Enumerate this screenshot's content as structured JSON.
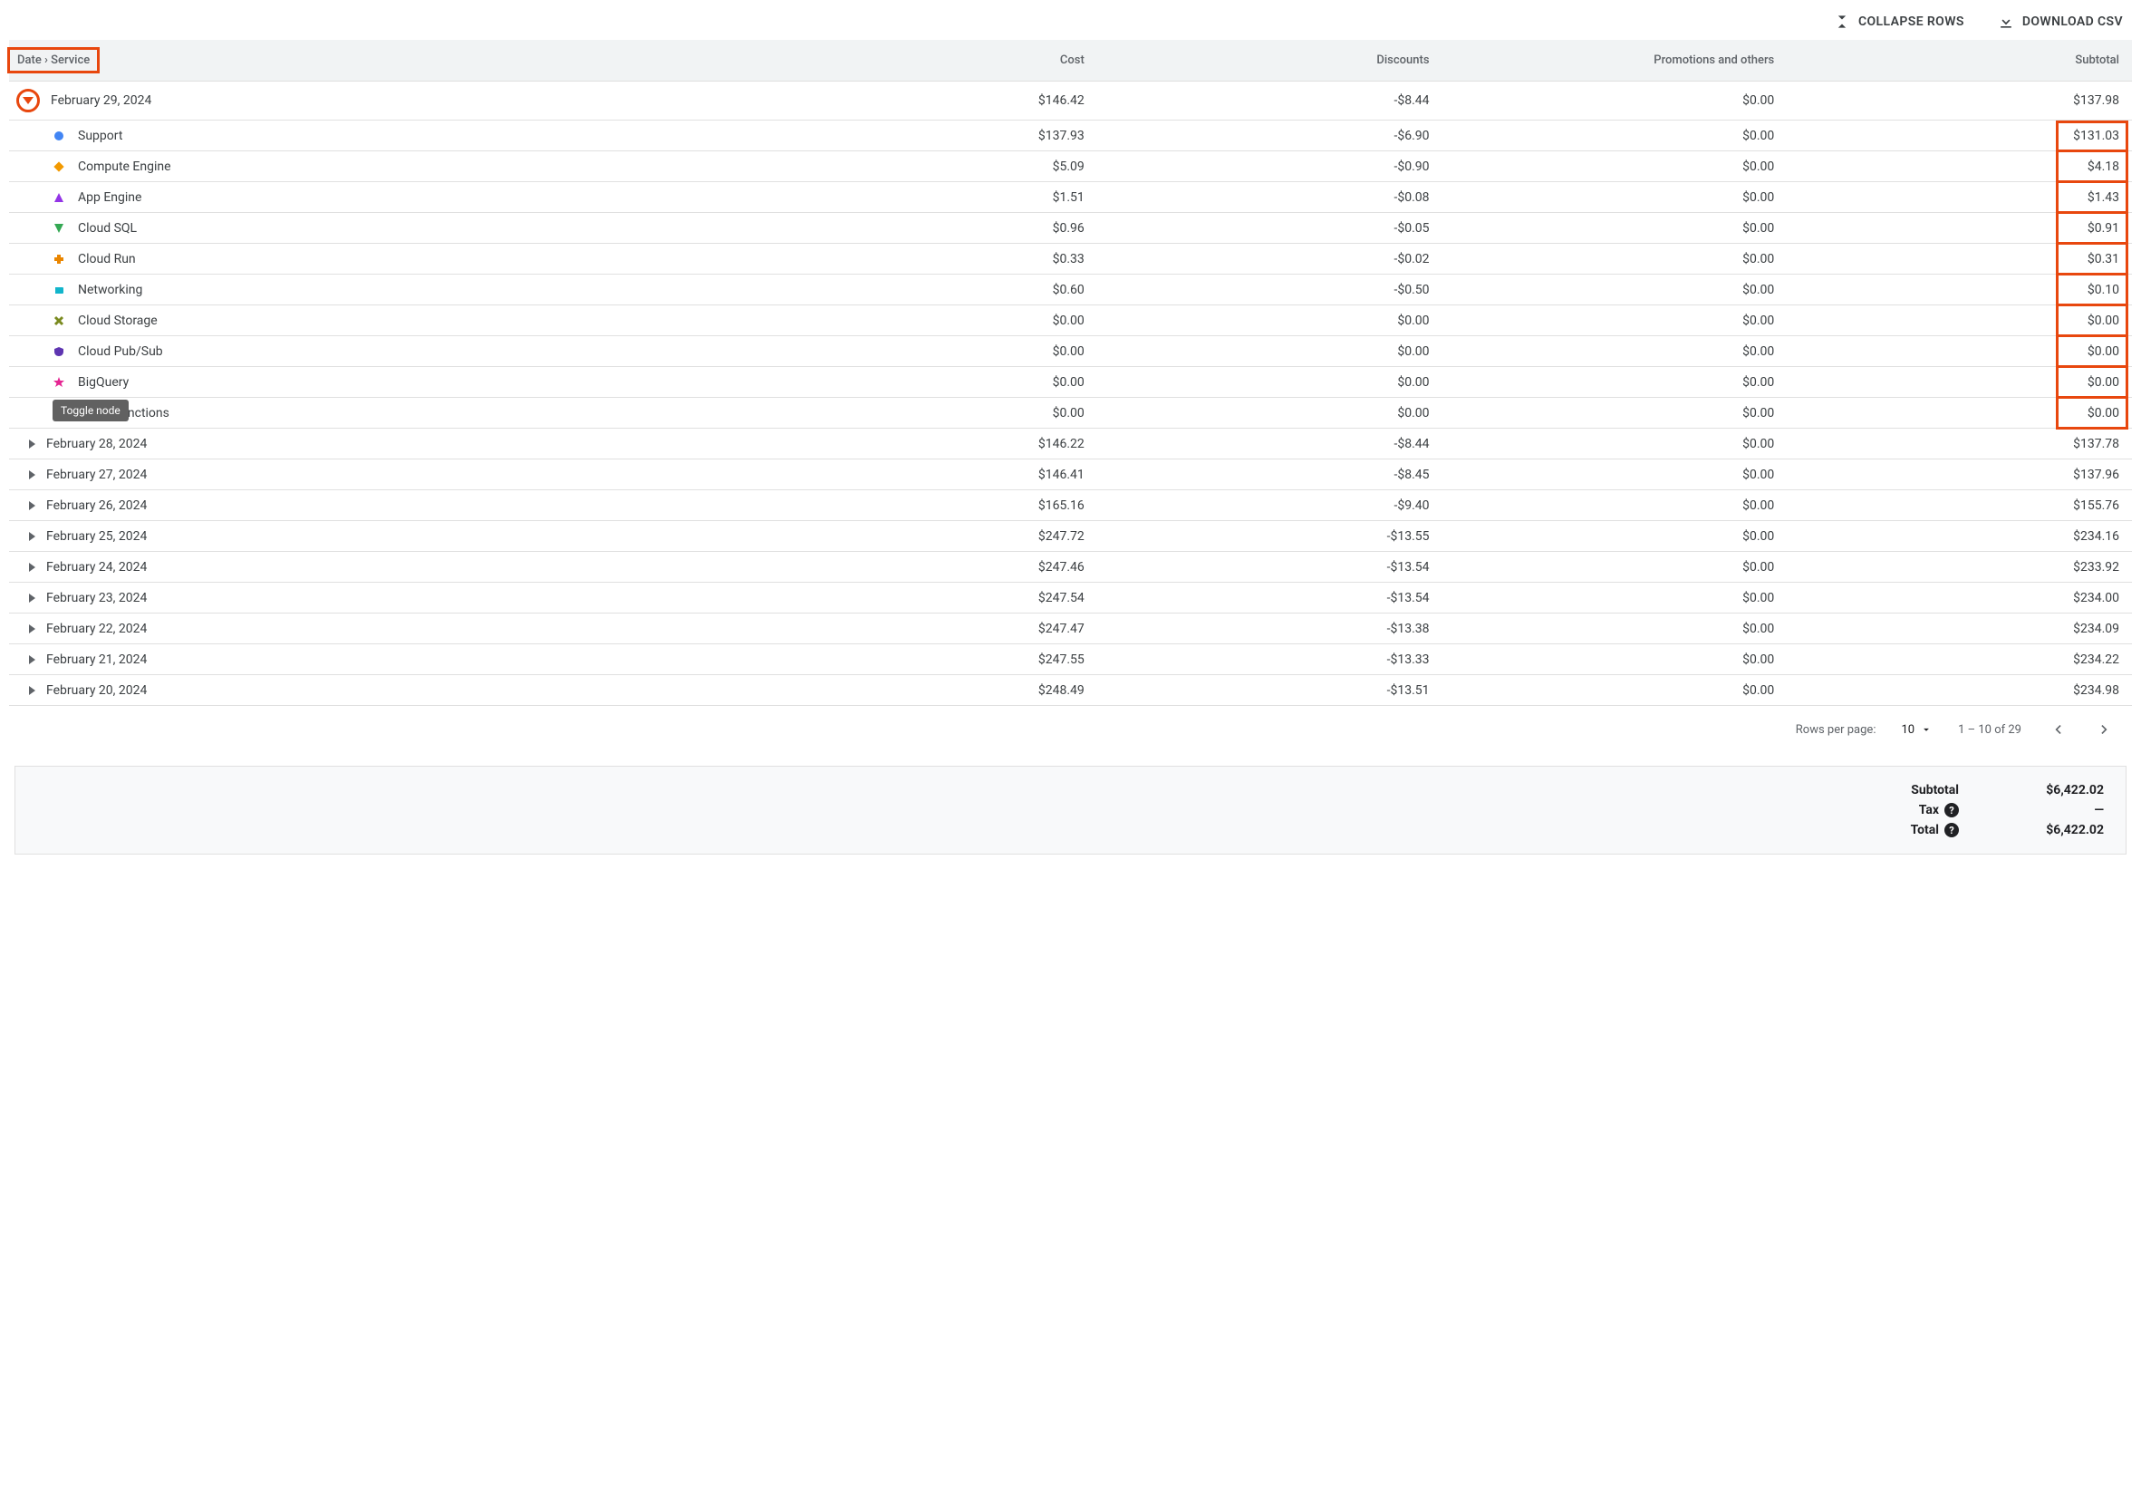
{
  "toolbar": {
    "collapse_label": "COLLAPSE ROWS",
    "download_label": "DOWNLOAD CSV"
  },
  "headers": {
    "name": "Date › Service",
    "cost": "Cost",
    "discounts": "Discounts",
    "promotions": "Promotions and others",
    "subtotal": "Subtotal"
  },
  "tooltip": "Toggle node",
  "colors": {
    "header_bg": "#f1f3f4",
    "border": "#e0e0e0",
    "highlight": "#e8470e",
    "text_muted": "#5f6368",
    "text": "#3c4043"
  },
  "expanded_date": {
    "label": "February 29, 2024",
    "cost": "$146.42",
    "discounts": "-$8.44",
    "promotions": "$0.00",
    "subtotal": "$137.98"
  },
  "services": [
    {
      "name": "Support",
      "cost": "$137.93",
      "discounts": "-$6.90",
      "promotions": "$0.00",
      "subtotal": "$131.03",
      "marker": "circle",
      "color": "#4285f4"
    },
    {
      "name": "Compute Engine",
      "cost": "$5.09",
      "discounts": "-$0.90",
      "promotions": "$0.00",
      "subtotal": "$4.18",
      "marker": "diamond",
      "color": "#f29900"
    },
    {
      "name": "App Engine",
      "cost": "$1.51",
      "discounts": "-$0.08",
      "promotions": "$0.00",
      "subtotal": "$1.43",
      "marker": "tri-up",
      "color": "#9334e6"
    },
    {
      "name": "Cloud SQL",
      "cost": "$0.96",
      "discounts": "-$0.05",
      "promotions": "$0.00",
      "subtotal": "$0.91",
      "marker": "tri-down",
      "color": "#34a853"
    },
    {
      "name": "Cloud Run",
      "cost": "$0.33",
      "discounts": "-$0.02",
      "promotions": "$0.00",
      "subtotal": "$0.31",
      "marker": "plus",
      "color": "#ea8600"
    },
    {
      "name": "Networking",
      "cost": "$0.60",
      "discounts": "-$0.50",
      "promotions": "$0.00",
      "subtotal": "$0.10",
      "marker": "tag",
      "color": "#12b5cb"
    },
    {
      "name": "Cloud Storage",
      "cost": "$0.00",
      "discounts": "$0.00",
      "promotions": "$0.00",
      "subtotal": "$0.00",
      "marker": "x",
      "color": "#7a8a1f"
    },
    {
      "name": "Cloud Pub/Sub",
      "cost": "$0.00",
      "discounts": "$0.00",
      "promotions": "$0.00",
      "subtotal": "$0.00",
      "marker": "shield",
      "color": "#5e35b1"
    },
    {
      "name": "BigQuery",
      "cost": "$0.00",
      "discounts": "$0.00",
      "promotions": "$0.00",
      "subtotal": "$0.00",
      "marker": "star",
      "color": "#e52592"
    },
    {
      "name": "Cloud Functions",
      "cost": "$0.00",
      "discounts": "$0.00",
      "promotions": "$0.00",
      "subtotal": "$0.00",
      "marker": "square",
      "color": "#12b5cb"
    }
  ],
  "collapsed_dates": [
    {
      "label": "February 28, 2024",
      "cost": "$146.22",
      "discounts": "-$8.44",
      "promotions": "$0.00",
      "subtotal": "$137.78"
    },
    {
      "label": "February 27, 2024",
      "cost": "$146.41",
      "discounts": "-$8.45",
      "promotions": "$0.00",
      "subtotal": "$137.96"
    },
    {
      "label": "February 26, 2024",
      "cost": "$165.16",
      "discounts": "-$9.40",
      "promotions": "$0.00",
      "subtotal": "$155.76"
    },
    {
      "label": "February 25, 2024",
      "cost": "$247.72",
      "discounts": "-$13.55",
      "promotions": "$0.00",
      "subtotal": "$234.16"
    },
    {
      "label": "February 24, 2024",
      "cost": "$247.46",
      "discounts": "-$13.54",
      "promotions": "$0.00",
      "subtotal": "$233.92"
    },
    {
      "label": "February 23, 2024",
      "cost": "$247.54",
      "discounts": "-$13.54",
      "promotions": "$0.00",
      "subtotal": "$234.00"
    },
    {
      "label": "February 22, 2024",
      "cost": "$247.47",
      "discounts": "-$13.38",
      "promotions": "$0.00",
      "subtotal": "$234.09"
    },
    {
      "label": "February 21, 2024",
      "cost": "$247.55",
      "discounts": "-$13.33",
      "promotions": "$0.00",
      "subtotal": "$234.22"
    },
    {
      "label": "February 20, 2024",
      "cost": "$248.49",
      "discounts": "-$13.51",
      "promotions": "$0.00",
      "subtotal": "$234.98"
    }
  ],
  "pager": {
    "rows_label": "Rows per page:",
    "rows_value": "10",
    "range": "1 – 10 of 29"
  },
  "summary": {
    "subtotal_label": "Subtotal",
    "subtotal_value": "$6,422.02",
    "tax_label": "Tax",
    "tax_value": "—",
    "total_label": "Total",
    "total_value": "$6,422.02"
  }
}
